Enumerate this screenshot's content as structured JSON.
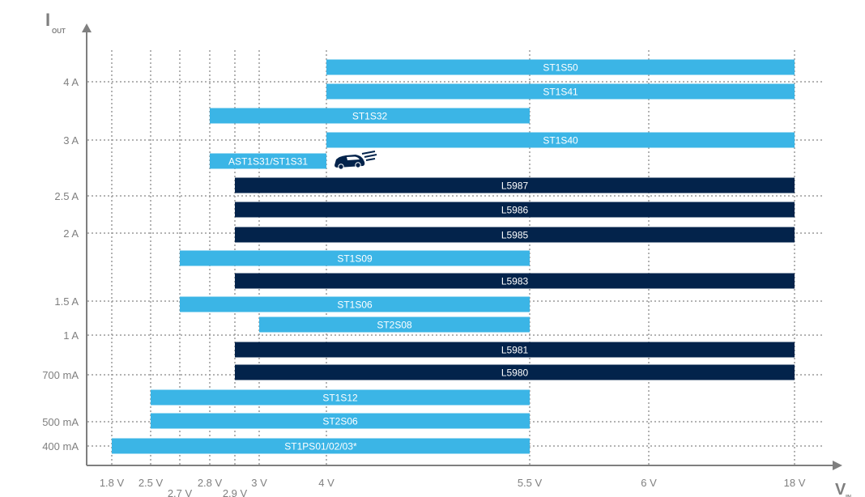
{
  "chart_data": {
    "type": "bar",
    "orientation": "horizontal-range",
    "title": "",
    "x_axis": {
      "title_main": "V",
      "title_sub": "IN",
      "ticks": [
        "1.8 V",
        "2.5 V",
        "2.7 V",
        "2.8 V",
        "2.9 V",
        "3 V",
        "4 V",
        "5.5 V",
        "6 V",
        "18 V"
      ]
    },
    "y_axis": {
      "title_main": "I",
      "title_sub": "OUT",
      "ticks": [
        "400 mA",
        "500 mA",
        "700 mA",
        "1 A",
        "1.5 A",
        "2 A",
        "2.5 A",
        "3 A",
        "4 A"
      ]
    },
    "grid": true,
    "colors": {
      "light": "#3bb5e6",
      "dark": "#03234b",
      "grid": "#9a9a9a",
      "axis": "#7f7f7f"
    },
    "automotive_icon": "car-icon",
    "bars": [
      {
        "label": "ST1S50",
        "vin_min": "4 V",
        "vin_max": "18 V",
        "color": "light"
      },
      {
        "label": "ST1S41",
        "vin_min": "4 V",
        "vin_max": "18 V",
        "color": "light"
      },
      {
        "label": "ST1S32",
        "vin_min": "2.8 V",
        "vin_max": "5.5 V",
        "color": "light"
      },
      {
        "label": "ST1S40",
        "vin_min": "4 V",
        "vin_max": "18 V",
        "color": "light"
      },
      {
        "label": "AST1S31/ST1S31",
        "vin_min": "2.8 V",
        "vin_max": "4 V",
        "color": "light",
        "automotive": true
      },
      {
        "label": "L5987",
        "vin_min": "2.9 V",
        "vin_max": "18 V",
        "color": "dark"
      },
      {
        "label": "L5986",
        "vin_min": "2.9 V",
        "vin_max": "18 V",
        "color": "dark"
      },
      {
        "label": "L5985",
        "vin_min": "2.9 V",
        "vin_max": "18 V",
        "color": "dark"
      },
      {
        "label": "ST1S09",
        "vin_min": "2.7 V",
        "vin_max": "5.5 V",
        "color": "light"
      },
      {
        "label": "L5983",
        "vin_min": "2.9 V",
        "vin_max": "18 V",
        "color": "dark"
      },
      {
        "label": "ST1S06",
        "vin_min": "2.7 V",
        "vin_max": "5.5 V",
        "color": "light"
      },
      {
        "label": "ST2S08",
        "vin_min": "3 V",
        "vin_max": "5.5 V",
        "color": "light"
      },
      {
        "label": "L5981",
        "vin_min": "2.9 V",
        "vin_max": "18 V",
        "color": "dark"
      },
      {
        "label": "L5980",
        "vin_min": "2.9 V",
        "vin_max": "18 V",
        "color": "dark"
      },
      {
        "label": "ST1S12",
        "vin_min": "2.5 V",
        "vin_max": "5.5 V",
        "color": "light"
      },
      {
        "label": "ST2S06",
        "vin_min": "2.5 V",
        "vin_max": "5.5 V",
        "color": "light"
      },
      {
        "label": "ST1PS01/02/03*",
        "vin_min": "1.8 V",
        "vin_max": "5.5 V",
        "color": "light"
      }
    ]
  }
}
